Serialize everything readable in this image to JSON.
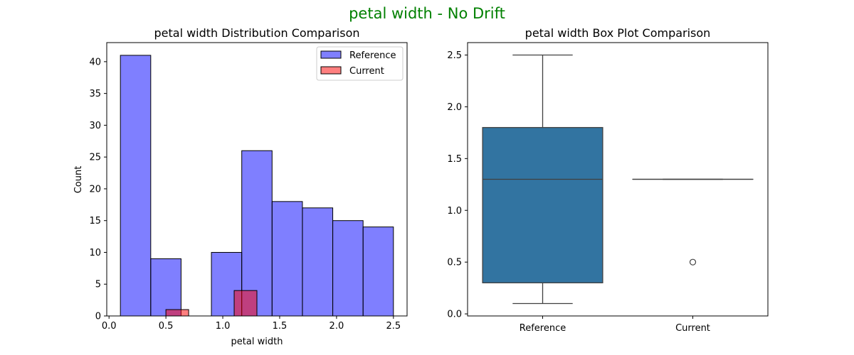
{
  "suptitle": "petal width - No Drift",
  "colors": {
    "suptitle": "#008000",
    "reference_hist": "#0000ff",
    "current_hist": "#ff0000",
    "box_fill": "#3274a1",
    "box_line": "#404040"
  },
  "chart_data": [
    {
      "type": "histogram",
      "title": "petal width Distribution Comparison",
      "xlabel": "petal width",
      "ylabel": "Count",
      "xlim": [
        -0.02,
        2.62
      ],
      "ylim": [
        0,
        43
      ],
      "xticks": [
        "0.0",
        "0.5",
        "1.0",
        "1.5",
        "2.0",
        "2.5"
      ],
      "xtick_values": [
        0.0,
        0.5,
        1.0,
        1.5,
        2.0,
        2.5
      ],
      "yticks": [
        "0",
        "5",
        "10",
        "15",
        "20",
        "25",
        "30",
        "35",
        "40"
      ],
      "ytick_values": [
        0,
        5,
        10,
        15,
        20,
        25,
        30,
        35,
        40
      ],
      "grid": false,
      "legend_position": "top-right",
      "series": [
        {
          "name": "Reference",
          "color": "#0000ff",
          "alpha": 0.5,
          "bins": [
            {
              "x0": 0.1,
              "x1": 0.3667,
              "count": 41
            },
            {
              "x0": 0.3667,
              "x1": 0.6333,
              "count": 9
            },
            {
              "x0": 0.6333,
              "x1": 0.9,
              "count": 0
            },
            {
              "x0": 0.9,
              "x1": 1.1667,
              "count": 10
            },
            {
              "x0": 1.1667,
              "x1": 1.4333,
              "count": 26
            },
            {
              "x0": 1.4333,
              "x1": 1.7,
              "count": 18
            },
            {
              "x0": 1.7,
              "x1": 1.9667,
              "count": 17
            },
            {
              "x0": 1.9667,
              "x1": 2.2333,
              "count": 15
            },
            {
              "x0": 2.2333,
              "x1": 2.5,
              "count": 14
            }
          ]
        },
        {
          "name": "Current",
          "color": "#ff0000",
          "alpha": 0.5,
          "bins": [
            {
              "x0": 0.5,
              "x1": 0.7,
              "count": 1
            },
            {
              "x0": 0.7,
              "x1": 0.9,
              "count": 0
            },
            {
              "x0": 0.9,
              "x1": 1.1,
              "count": 0
            },
            {
              "x0": 1.1,
              "x1": 1.3,
              "count": 4
            }
          ]
        }
      ]
    },
    {
      "type": "box",
      "title": "petal width Box Plot Comparison",
      "xlabel": "",
      "ylabel": "",
      "ylim": [
        -0.02,
        2.62
      ],
      "yticks": [
        "0.0",
        "0.5",
        "1.0",
        "1.5",
        "2.0",
        "2.5"
      ],
      "ytick_values": [
        0.0,
        0.5,
        1.0,
        1.5,
        2.0,
        2.5
      ],
      "categories": [
        "Reference",
        "Current"
      ],
      "grid": false,
      "boxes": [
        {
          "name": "Reference",
          "whisker_low": 0.1,
          "q1": 0.3,
          "median": 1.3,
          "q3": 1.8,
          "whisker_high": 2.5,
          "outliers": []
        },
        {
          "name": "Current",
          "whisker_low": 1.3,
          "q1": 1.3,
          "median": 1.3,
          "q3": 1.3,
          "whisker_high": 1.3,
          "outliers": [
            0.5
          ]
        }
      ]
    }
  ]
}
